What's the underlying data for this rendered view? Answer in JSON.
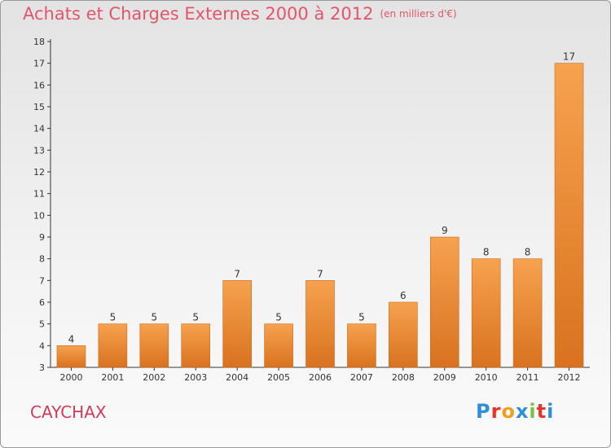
{
  "header": {
    "title": "Achats et Charges Externes 2000 à 2012",
    "subtitle": "(en milliers d'€)"
  },
  "footer": {
    "commune": "CAYCHAX",
    "logo_text": "Proxiti"
  },
  "colors": {
    "bar_light": "#f6a24f",
    "bar_dark": "#d9721e",
    "title": "#e0566a",
    "commune": "#cc3d5c",
    "logo_letters": [
      "#2f8fd8",
      "#e8342c",
      "#f0a020",
      "#2f8fd8",
      "#7cc242",
      "#e8342c",
      "#2f8fd8"
    ]
  },
  "chart_data": {
    "type": "bar",
    "categories": [
      "2000",
      "2001",
      "2002",
      "2003",
      "2004",
      "2005",
      "2006",
      "2007",
      "2008",
      "2009",
      "2010",
      "2011",
      "2012"
    ],
    "values": [
      4,
      5,
      5,
      5,
      7,
      5,
      7,
      5,
      6,
      9,
      8,
      8,
      17
    ],
    "title": "Achats et Charges Externes 2000 à 2012",
    "subtitle": "(en milliers d'€)",
    "ylim": [
      3,
      18
    ],
    "yticks": [
      3,
      4,
      5,
      6,
      7,
      8,
      9,
      10,
      11,
      12,
      13,
      14,
      15,
      16,
      17,
      18
    ],
    "grid": false,
    "data_labels": true
  }
}
